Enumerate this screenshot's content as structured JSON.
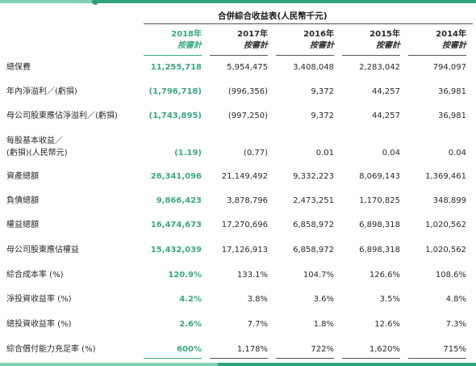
{
  "table": {
    "title": "合併綜合收益表(人民幣千元)",
    "columns": [
      {
        "year": "2018年",
        "sub": "按審計"
      },
      {
        "year": "2017年",
        "sub": "按審計"
      },
      {
        "year": "2016年",
        "sub": "按審計"
      },
      {
        "year": "2015年",
        "sub": "按審計"
      },
      {
        "year": "2014年",
        "sub": "按審計"
      }
    ],
    "rows": [
      {
        "label": [
          "總保費"
        ],
        "values": [
          "11,255,718",
          "5,954,475",
          "3,408,048",
          "2,283,042",
          "794,097"
        ]
      },
      {
        "label": [
          "年內淨溢利／(虧損)"
        ],
        "values": [
          "(1,796,718)",
          "(996,356)",
          "9,372",
          "44,257",
          "36,981"
        ]
      },
      {
        "label": [
          "母公司股東應佔淨溢利／(虧損)"
        ],
        "values": [
          "(1,743,895)",
          "(997,250)",
          "9,372",
          "44,257",
          "36,981"
        ]
      },
      {
        "label": [
          "每股基本收益／",
          "(虧損)(人民幣元)"
        ],
        "values": [
          "(1.19)",
          "(0.77)",
          "0.01",
          "0.04",
          "0.04"
        ]
      },
      {
        "label": [
          "資產總額"
        ],
        "values": [
          "26,341,096",
          "21,149,492",
          "9,332,223",
          "8,069,143",
          "1,369,461"
        ]
      },
      {
        "label": [
          "負債總額"
        ],
        "values": [
          "9,866,423",
          "3,878,796",
          "2,473,251",
          "1,170,825",
          "348,899"
        ]
      },
      {
        "label": [
          "權益總額"
        ],
        "values": [
          "16,474,673",
          "17,270,696",
          "6,858,972",
          "6,898,318",
          "1,020,562"
        ]
      },
      {
        "label": [
          "母公司股東應佔權益"
        ],
        "values": [
          "15,432,039",
          "17,126,913",
          "6,858,972",
          "6,898,318",
          "1,020,562"
        ]
      },
      {
        "label": [
          "綜合成本率 (%)"
        ],
        "values": [
          "120.9%",
          "133.1%",
          "104.7%",
          "126.6%",
          "108.6%"
        ]
      },
      {
        "label": [
          "淨投資收益率 (%)"
        ],
        "values": [
          "4.2%",
          "3.8%",
          "3.6%",
          "3.5%",
          "4.8%"
        ]
      },
      {
        "label": [
          "總投資收益率 (%)"
        ],
        "values": [
          "2.6%",
          "7.7%",
          "1.8%",
          "12.6%",
          "7.3%"
        ]
      },
      {
        "label": [
          "綜合償付能力充足率 (%)"
        ],
        "values": [
          "600%",
          "1,178%",
          "722%",
          "1,620%",
          "715%"
        ]
      }
    ]
  }
}
